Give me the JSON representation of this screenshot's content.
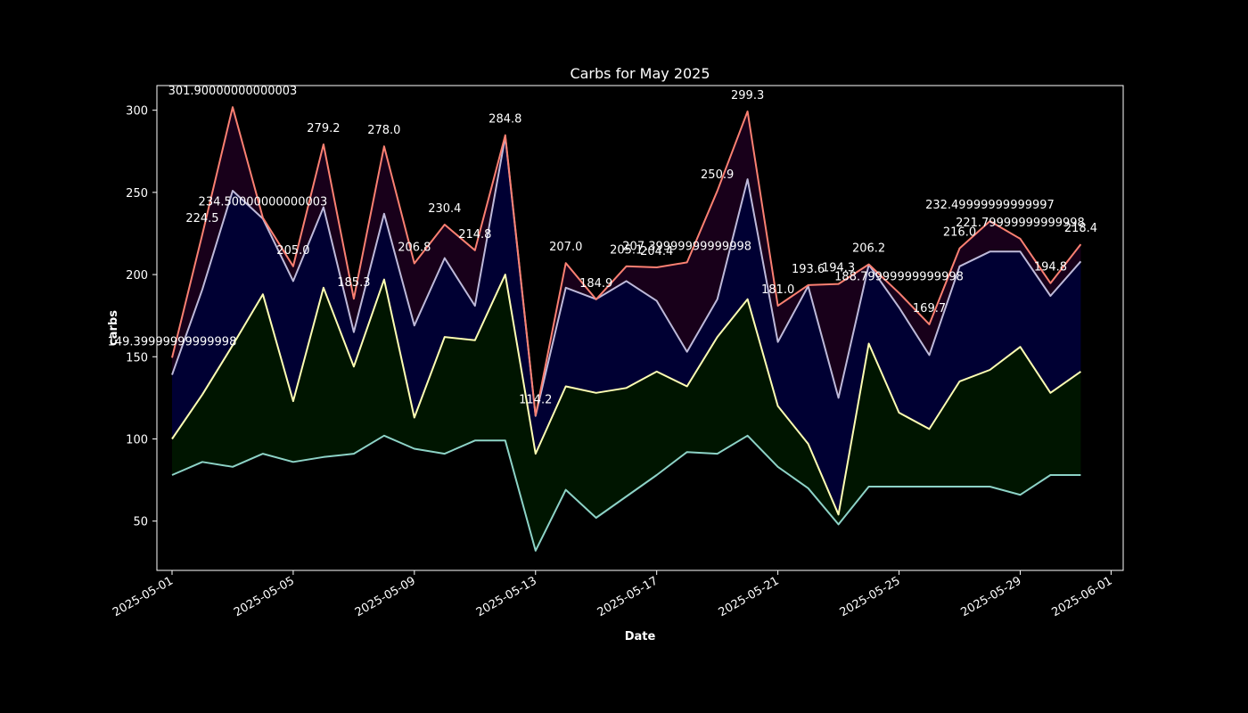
{
  "chart_data": {
    "type": "area",
    "title": "Carbs for May 2025",
    "xlabel": "Date",
    "ylabel": "carbs",
    "ylim": [
      20,
      315
    ],
    "xlim": [
      "2025-04-30",
      "2025-06-01"
    ],
    "grid": false,
    "background": "#000000",
    "x_ticks": [
      "2025-05-01",
      "2025-05-05",
      "2025-05-09",
      "2025-05-13",
      "2025-05-17",
      "2025-05-21",
      "2025-05-25",
      "2025-05-29",
      "2025-06-01"
    ],
    "y_ticks": [
      50,
      100,
      150,
      200,
      250,
      300
    ],
    "x": [
      "2025-05-01",
      "2025-05-02",
      "2025-05-03",
      "2025-05-04",
      "2025-05-05",
      "2025-05-06",
      "2025-05-07",
      "2025-05-08",
      "2025-05-09",
      "2025-05-10",
      "2025-05-11",
      "2025-05-12",
      "2025-05-13",
      "2025-05-14",
      "2025-05-15",
      "2025-05-16",
      "2025-05-17",
      "2025-05-18",
      "2025-05-19",
      "2025-05-20",
      "2025-05-21",
      "2025-05-22",
      "2025-05-23",
      "2025-05-24",
      "2025-05-25",
      "2025-05-26",
      "2025-05-27",
      "2025-05-28",
      "2025-05-29",
      "2025-05-30",
      "2025-05-31"
    ],
    "series": [
      {
        "values": [
          78,
          86,
          83,
          91,
          86,
          89,
          91,
          102,
          94,
          91,
          99,
          99,
          32,
          69,
          52,
          65,
          78,
          92,
          91,
          102,
          83,
          70,
          48,
          71,
          71,
          71,
          71,
          71,
          66,
          78,
          78
        ],
        "color": "#8dd3c7",
        "fill": "#000000"
      },
      {
        "values": [
          100,
          127,
          157,
          188,
          123,
          192,
          144,
          197,
          113,
          162,
          160,
          200,
          91,
          132,
          128,
          131,
          141,
          132,
          162,
          185,
          120,
          97,
          54,
          158,
          116,
          106,
          135,
          142,
          156,
          128,
          141
        ],
        "color": "#ffffb3",
        "fill": "#001500"
      },
      {
        "values": [
          139,
          191,
          251,
          234,
          196,
          241,
          165,
          237,
          169,
          210,
          181,
          284,
          114,
          192,
          185,
          196,
          184,
          153,
          185,
          258,
          159,
          193,
          125,
          206,
          180,
          151,
          205,
          214,
          214,
          187,
          208
        ],
        "color": "#bebada",
        "fill": "#000033"
      },
      {
        "values": [
          149.39999999999998,
          224.5,
          301.90000000000003,
          234.50000000000003,
          205.0,
          279.2,
          185.3,
          278.0,
          206.8,
          230.4,
          214.8,
          284.8,
          114.2,
          207.0,
          184.9,
          205.1,
          204.4,
          207.39999999999998,
          250.9,
          299.3,
          181.0,
          193.6,
          194.3,
          206.2,
          188.79999999999998,
          169.7,
          216.0,
          232.49999999999997,
          221.79999999999998,
          194.8,
          218.4
        ],
        "color": "#fb8072",
        "fill": "#18001a"
      }
    ],
    "data_labels": [
      "149.39999999999998",
      "224.5",
      "301.90000000000003",
      "234.50000000000003",
      "205.0",
      "279.2",
      "185.3",
      "278.0",
      "206.8",
      "230.4",
      "214.8",
      "284.8",
      "114.2",
      "207.0",
      "184.9",
      "205.1",
      "204.4",
      "207.39999999999998",
      "250.9",
      "299.3",
      "181.0",
      "193.6",
      "194.3",
      "206.2",
      "188.79999999999998",
      "169.7",
      "216.0",
      "232.49999999999997",
      "221.79999999999998",
      "194.8",
      "218.4"
    ]
  }
}
